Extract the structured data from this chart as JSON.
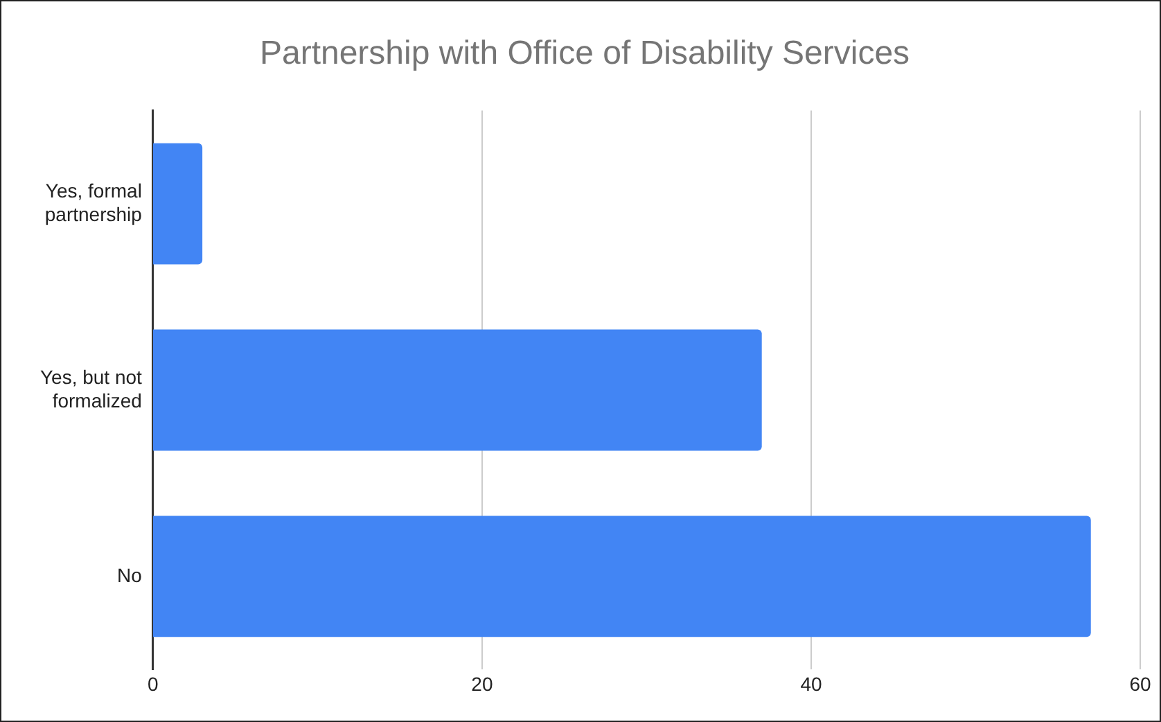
{
  "chart_data": {
    "type": "bar",
    "orientation": "horizontal",
    "title": "Partnership with Office of Disability Services",
    "categories": [
      "Yes, formal partnership",
      "Yes, but not formalized",
      "No"
    ],
    "values": [
      3,
      37,
      57
    ],
    "color": "#4285f4",
    "xlim": [
      0,
      60
    ],
    "xticks": [
      0,
      20,
      40,
      60
    ],
    "grid": "x",
    "legend": false
  }
}
